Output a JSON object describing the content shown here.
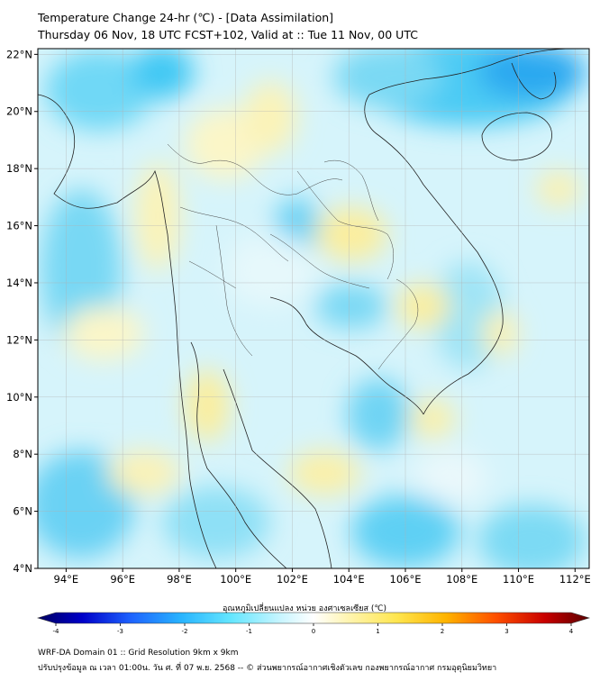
{
  "header": {
    "title": "Temperature Change 24-hr (℃) - [Data Assimilation]",
    "subtitle": "Thursday 06 Nov, 18 UTC FCST+102, Valid at :: Tue 11 Nov, 00 UTC"
  },
  "map": {
    "lon_range": [
      93,
      112.5
    ],
    "lat_range": [
      4,
      22.2
    ],
    "lon_ticks": [
      "94°E",
      "96°E",
      "98°E",
      "100°E",
      "102°E",
      "104°E",
      "106°E",
      "108°E",
      "110°E",
      "112°E"
    ],
    "lat_ticks": [
      "22°N",
      "20°N",
      "18°N",
      "16°N",
      "14°N",
      "12°N",
      "10°N",
      "8°N",
      "6°N",
      "4°N"
    ],
    "grid": true
  },
  "colorbar": {
    "title": "อุณหภูมิเปลี่ยนแปลง หน่วย องศาเซลเซียส (℃)",
    "ticks": [
      "-4",
      "-3",
      "-2",
      "-1",
      "0",
      "1",
      "2",
      "3",
      "4"
    ],
    "colors": [
      "#000060",
      "#0000c8",
      "#1e64ff",
      "#28b4ff",
      "#64e6ff",
      "#c8f5ff",
      "#ffffff",
      "#fff5b4",
      "#ffe650",
      "#ffb400",
      "#ff5000",
      "#c80000",
      "#5a0000"
    ]
  },
  "footer": {
    "line1": "WRF-DA Domain 01 :: Grid Resolution 9km x 9km",
    "line2": "ปรับปรุงข้อมูล ณ เวลา 01:00น. วัน ศ. ที่ 07 พ.ย. 2568 -- © ส่วนพยากรณ์อากาศเชิงตัวเลข กองพยากรณ์อากาศ กรมอุตุนิยมวิทยา"
  }
}
